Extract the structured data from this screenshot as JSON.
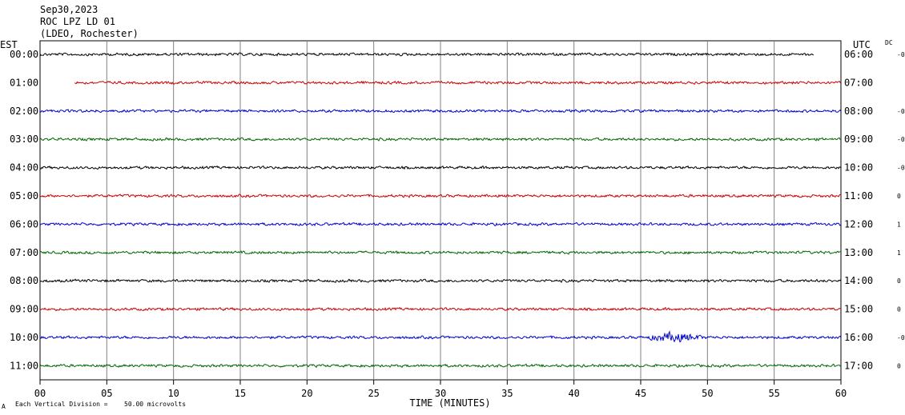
{
  "header": {
    "date": "Sep30,2023",
    "station": "ROC LPZ LD 01",
    "network": "(LDEO, Rochester)"
  },
  "left_axis_label": "EST",
  "right_axis_label": "UTC",
  "dc_label": "DC",
  "xlabel": "TIME (MINUTES)",
  "footer": {
    "symbol": "A",
    "scale_note": "Each Vertical Division =",
    "scale_value": "50.00 microvolts"
  },
  "colors": {
    "black": "#000000",
    "red": "#cc0000",
    "blue": "#0000cc",
    "green": "#006600",
    "grid": "#808080"
  },
  "chart_data": {
    "type": "line",
    "title": "ROC LPZ LD 01",
    "xlabel": "TIME (MINUTES)",
    "xlim": [
      0,
      60
    ],
    "x_ticks": [
      "00",
      "05",
      "10",
      "15",
      "20",
      "25",
      "30",
      "35",
      "40",
      "45",
      "50",
      "55",
      "60"
    ],
    "grid": true,
    "series": [
      {
        "est": "00:00",
        "utc": "06:00",
        "dc": "-0",
        "color": "black",
        "start_min": 0.0,
        "end_min": 58.0,
        "events": []
      },
      {
        "est": "01:00",
        "utc": "07:00",
        "dc": "",
        "color": "red",
        "start_min": 2.6,
        "end_min": 60.0,
        "events": []
      },
      {
        "est": "02:00",
        "utc": "08:00",
        "dc": "-0",
        "color": "blue",
        "start_min": 0.0,
        "end_min": 60.0,
        "events": []
      },
      {
        "est": "03:00",
        "utc": "09:00",
        "dc": "-0",
        "color": "green",
        "start_min": 0.0,
        "end_min": 60.0,
        "events": []
      },
      {
        "est": "04:00",
        "utc": "10:00",
        "dc": "-0",
        "color": "black",
        "start_min": 0.0,
        "end_min": 60.0,
        "events": []
      },
      {
        "est": "05:00",
        "utc": "11:00",
        "dc": "0",
        "color": "red",
        "start_min": 0.0,
        "end_min": 60.0,
        "events": []
      },
      {
        "est": "06:00",
        "utc": "12:00",
        "dc": "1",
        "color": "blue",
        "start_min": 0.0,
        "end_min": 60.0,
        "events": []
      },
      {
        "est": "07:00",
        "utc": "13:00",
        "dc": "1",
        "color": "green",
        "start_min": 0.0,
        "end_min": 60.0,
        "events": []
      },
      {
        "est": "08:00",
        "utc": "14:00",
        "dc": "0",
        "color": "black",
        "start_min": 0.0,
        "end_min": 60.0,
        "events": []
      },
      {
        "est": "09:00",
        "utc": "15:00",
        "dc": "0",
        "color": "red",
        "start_min": 0.0,
        "end_min": 60.0,
        "events": []
      },
      {
        "est": "10:00",
        "utc": "16:00",
        "dc": "-0",
        "color": "blue",
        "start_min": 0.0,
        "end_min": 60.0,
        "events": [
          {
            "start_min": 45.5,
            "end_min": 50.5,
            "peak_min": 47.5
          }
        ]
      },
      {
        "est": "11:00",
        "utc": "17:00",
        "dc": "0",
        "color": "green",
        "start_min": 0.0,
        "end_min": 60.0,
        "events": []
      }
    ]
  }
}
